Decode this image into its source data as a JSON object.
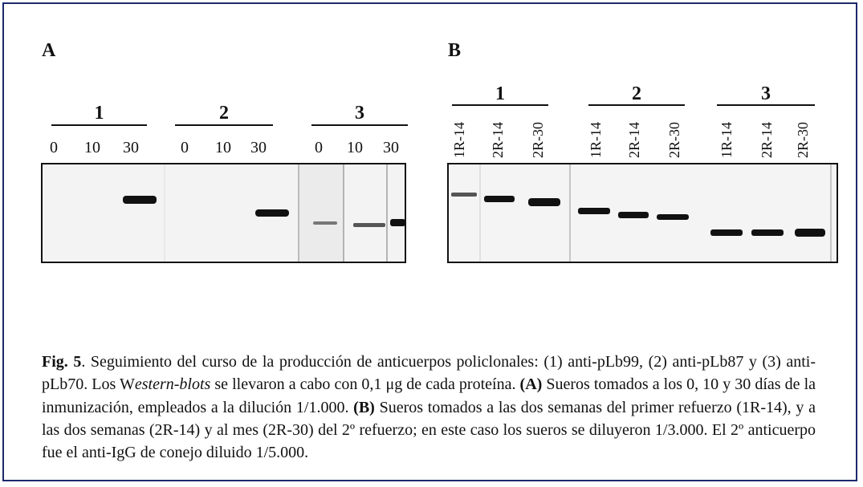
{
  "panel_a": {
    "label": "A",
    "groups": [
      {
        "label": "1",
        "lanes": [
          "0",
          "10",
          "30"
        ]
      },
      {
        "label": "2",
        "lanes": [
          "0",
          "10",
          "30"
        ]
      },
      {
        "label": "3",
        "lanes": [
          "0",
          "10",
          "30"
        ]
      }
    ]
  },
  "panel_b": {
    "label": "B",
    "groups": [
      {
        "label": "1",
        "lanes": [
          "1R-14",
          "2R-14",
          "2R-30"
        ]
      },
      {
        "label": "2",
        "lanes": [
          "1R-14",
          "2R-14",
          "2R-30"
        ]
      },
      {
        "label": "3",
        "lanes": [
          "1R-14",
          "2R-14",
          "2R-30"
        ]
      }
    ]
  },
  "caption": [
    "Fig. 5",
    ". Seguimiento del curso de la producción de anticuerpos policlonales: (1) anti-pLb99, (2) anti-pLb87 y (3) anti-pLb70. Los W",
    "estern-blots",
    " se llevaron a cabo con 0,1 μg de cada proteína. ",
    "(A)",
    " Sueros tomados a los 0, 10 y 30 días de la inmunización, empleados a la dilución 1/1.000. ",
    "(B)",
    " Sueros tomados a las dos semanas del primer refuerzo (1R-14), y a las dos semanas (2R-14) y al mes (2R-30) del 2º refuerzo; en este caso los sueros se diluyeron 1/3.000. El 2º anticuerpo fue el anti-IgG de conejo diluido 1/5.000."
  ]
}
